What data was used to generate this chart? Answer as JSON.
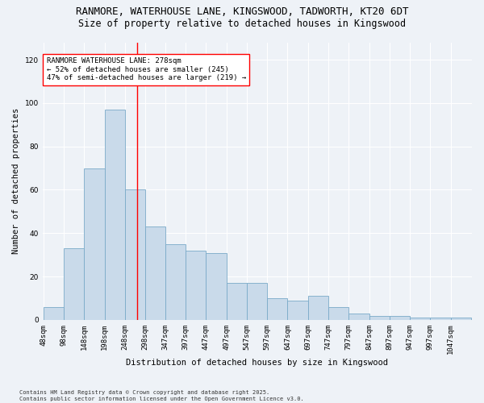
{
  "title_line1": "RANMORE, WATERHOUSE LANE, KINGSWOOD, TADWORTH, KT20 6DT",
  "title_line2": "Size of property relative to detached houses in Kingswood",
  "xlabel": "Distribution of detached houses by size in Kingswood",
  "ylabel": "Number of detached properties",
  "bar_color": "#c9daea",
  "bar_edge_color": "#7aaac8",
  "background_color": "#eef2f7",
  "vline_color": "red",
  "vline_x": 278,
  "annotation_text": "RANMORE WATERHOUSE LANE: 278sqm\n← 52% of detached houses are smaller (245)\n47% of semi-detached houses are larger (219) →",
  "categories": [
    "48sqm",
    "98sqm",
    "148sqm",
    "198sqm",
    "248sqm",
    "298sqm",
    "347sqm",
    "397sqm",
    "447sqm",
    "497sqm",
    "547sqm",
    "597sqm",
    "647sqm",
    "697sqm",
    "747sqm",
    "797sqm",
    "847sqm",
    "897sqm",
    "947sqm",
    "997sqm",
    "1047sqm"
  ],
  "bin_edges": [
    48,
    98,
    148,
    198,
    248,
    298,
    347,
    397,
    447,
    497,
    547,
    597,
    647,
    697,
    747,
    797,
    847,
    897,
    947,
    997,
    1047
  ],
  "bin_widths": [
    50,
    50,
    50,
    50,
    50,
    49,
    50,
    50,
    50,
    50,
    50,
    50,
    50,
    50,
    50,
    50,
    50,
    50,
    50,
    50,
    50
  ],
  "values": [
    6,
    33,
    70,
    97,
    60,
    43,
    35,
    32,
    31,
    17,
    17,
    10,
    9,
    11,
    6,
    3,
    2,
    2,
    1,
    1,
    1
  ],
  "ylim": [
    0,
    128
  ],
  "yticks": [
    0,
    20,
    40,
    60,
    80,
    100,
    120
  ],
  "footnote": "Contains HM Land Registry data © Crown copyright and database right 2025.\nContains public sector information licensed under the Open Government Licence v3.0.",
  "title_fontsize": 9,
  "subtitle_fontsize": 8.5,
  "tick_fontsize": 6.5,
  "ylabel_fontsize": 7.5,
  "xlabel_fontsize": 7.5,
  "annot_fontsize": 6.5,
  "footnote_fontsize": 5.0
}
